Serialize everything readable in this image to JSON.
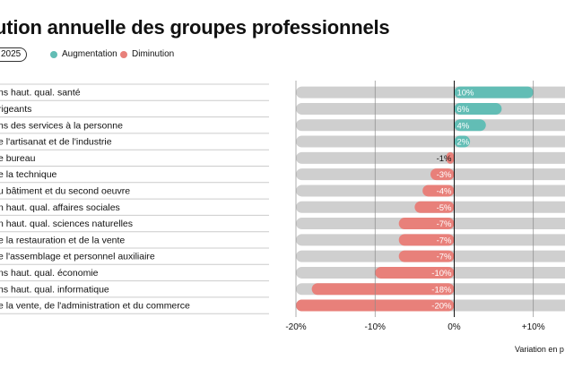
{
  "title": "ution annuelle des groupes professionnels",
  "filter_pill": "2025",
  "legend": [
    {
      "label": "Augmentation",
      "color": "#62bdb5"
    },
    {
      "label": "Diminution",
      "color": "#e8807a"
    }
  ],
  "axis_note": "Variation en p",
  "chart_data": {
    "type": "bar",
    "orientation": "horizontal",
    "categories": [
      "ns haut. qual. santé",
      "rigeants",
      "ns des services à la personne",
      "e l'artisanat et de l'industrie",
      "e bureau",
      "e la technique",
      "u bâtiment et du second oeuvre",
      "n haut. qual. affaires sociales",
      "n haut. qual. sciences naturelles",
      "e la restauration et de la vente",
      "e l'assemblage et personnel auxiliaire",
      "ns haut. qual. économie",
      "ns haut. qual. informatique",
      "e la vente, de l'administration et du commerce"
    ],
    "values": [
      10,
      6,
      4,
      2,
      -1,
      -3,
      -4,
      -5,
      -7,
      -7,
      -7,
      -10,
      -18,
      -20
    ],
    "value_labels": [
      "10%",
      "6%",
      "4%",
      "2%",
      "-1%",
      "-3%",
      "-4%",
      "-5%",
      "-7%",
      "-7%",
      "-7%",
      "-10%",
      "-18%",
      "-20%"
    ],
    "xlim": [
      -20,
      14
    ],
    "x_ticks": [
      -20,
      -10,
      0,
      10
    ],
    "x_tick_labels": [
      "-20%",
      "-10%",
      "0%",
      "+10%"
    ],
    "colors": {
      "positive": "#62bdb5",
      "negative": "#e8807a",
      "track": "#cfcfcf"
    },
    "grid": true
  }
}
